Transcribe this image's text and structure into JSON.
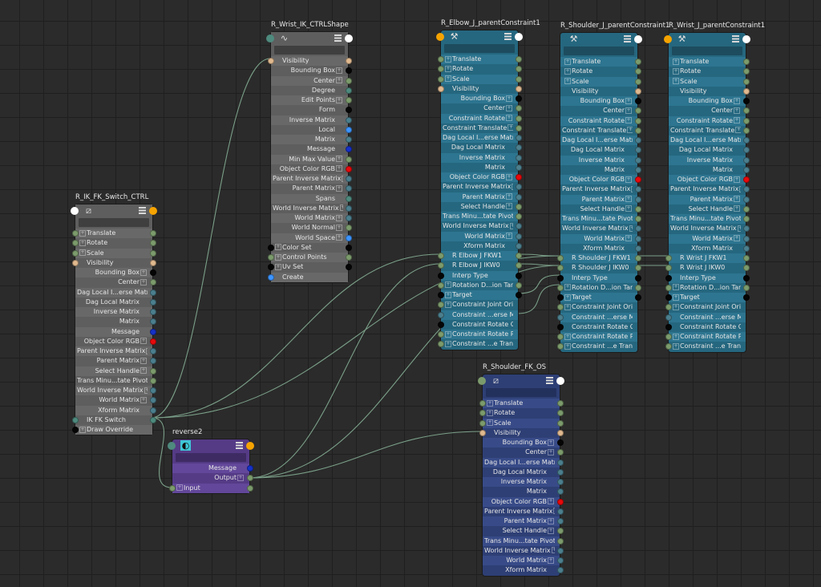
{
  "port_colors": {
    "g": "#7c9b6c",
    "t": "#e0b98f",
    "k": "#050505",
    "b": "#4b7f8e",
    "n": "#1531c8",
    "r": "#e8090b",
    "c": "#3d95ff",
    "d": "#4e8a7e",
    "w": "#ffffff",
    "o": "#f5a300"
  },
  "node_colors": {
    "gray": "#5e5e5e",
    "teal": "#25677f",
    "purple": "#553b86",
    "navy": "#2e3f75",
    "wire": "#7a9f88"
  },
  "nodes": [
    {
      "title": "R_IK_FK_Switch_CTRL",
      "style": "gray",
      "icon": "transform-icon",
      "head_ports": [
        "w",
        "o"
      ],
      "rows": [
        [
          "Translate",
          "l",
          "g",
          "g",
          1
        ],
        [
          "Rotate",
          "l",
          "g",
          "g",
          1
        ],
        [
          "Scale",
          "l",
          "g",
          "g",
          1
        ],
        [
          "Visibility",
          "l",
          "t",
          "t",
          0
        ],
        [
          "Bounding Box",
          "r",
          "",
          "k",
          1
        ],
        [
          "Center",
          "r",
          "",
          "g",
          1
        ],
        [
          "Dag Local I...erse Matrix",
          "r",
          "",
          "b",
          0
        ],
        [
          "Dag Local Matrix",
          "r",
          "",
          "b",
          0
        ],
        [
          "Inverse Matrix",
          "r",
          "",
          "b",
          0
        ],
        [
          "Matrix",
          "r",
          "",
          "b",
          0
        ],
        [
          "Message",
          "r",
          "",
          "n",
          0
        ],
        [
          "Object Color RGB",
          "r",
          "",
          "r",
          1
        ],
        [
          "Parent Inverse Matrix",
          "r",
          "",
          "b",
          1
        ],
        [
          "Parent Matrix",
          "r",
          "",
          "b",
          1
        ],
        [
          "Select Handle",
          "r",
          "",
          "g",
          1
        ],
        [
          "Trans Minu...tate Pivot",
          "r",
          "",
          "g",
          1
        ],
        [
          "World Inverse Matrix",
          "r",
          "",
          "b",
          1
        ],
        [
          "World Matrix",
          "r",
          "",
          "b",
          1
        ],
        [
          "Xform Matrix",
          "r",
          "",
          "b",
          0
        ],
        [
          "IK FK Switch",
          "l",
          "d",
          "d",
          0
        ],
        [
          "Draw Override",
          "l",
          "k",
          "",
          1
        ]
      ]
    },
    {
      "title": "R_Wrist_IK_CTRLShape",
      "style": "gray",
      "icon": "curve-icon",
      "head_ports": [
        "d",
        "w"
      ],
      "rows": [
        [
          "Visibility",
          "l",
          "t",
          "t",
          0
        ],
        [
          "Bounding Box",
          "r",
          "",
          "k",
          1
        ],
        [
          "Center",
          "r",
          "",
          "g",
          1
        ],
        [
          "Degree",
          "r",
          "",
          "d",
          0
        ],
        [
          "Edit Points",
          "r",
          "",
          "g",
          1
        ],
        [
          "Form",
          "r",
          "",
          "k",
          0
        ],
        [
          "Inverse Matrix",
          "r",
          "",
          "b",
          0
        ],
        [
          "Local",
          "r",
          "",
          "c",
          0
        ],
        [
          "Matrix",
          "r",
          "",
          "b",
          0
        ],
        [
          "Message",
          "r",
          "",
          "n",
          0
        ],
        [
          "Min Max Value",
          "r",
          "",
          "g",
          1
        ],
        [
          "Object Color RGB",
          "r",
          "",
          "r",
          1
        ],
        [
          "Parent Inverse Matrix",
          "r",
          "",
          "b",
          1
        ],
        [
          "Parent Matrix",
          "r",
          "",
          "b",
          1
        ],
        [
          "Spans",
          "r",
          "",
          "d",
          0
        ],
        [
          "World Inverse Matrix",
          "r",
          "",
          "b",
          1
        ],
        [
          "World Matrix",
          "r",
          "",
          "b",
          1
        ],
        [
          "World Normal",
          "r",
          "",
          "g",
          1
        ],
        [
          "World Space",
          "r",
          "",
          "c",
          1
        ],
        [
          "Color Set",
          "l",
          "k",
          "k",
          1
        ],
        [
          "Control Points",
          "l",
          "g",
          "g",
          1
        ],
        [
          "Uv Set",
          "l",
          "k",
          "k",
          1
        ],
        [
          "Create",
          "l",
          "c",
          "",
          0
        ]
      ]
    },
    {
      "title": "R_Elbow_J_parentConstraint1",
      "style": "teal",
      "icon": "constraint-icon",
      "head_ports": [
        "o",
        "w"
      ],
      "rows": [
        [
          "Translate",
          "l",
          "g",
          "g",
          1
        ],
        [
          "Rotate",
          "l",
          "g",
          "g",
          1
        ],
        [
          "Scale",
          "l",
          "g",
          "g",
          1
        ],
        [
          "Visibility",
          "l",
          "t",
          "t",
          0
        ],
        [
          "Bounding Box",
          "r",
          "",
          "k",
          1
        ],
        [
          "Center",
          "r",
          "",
          "g",
          1
        ],
        [
          "Constraint Rotate",
          "r",
          "",
          "g",
          1
        ],
        [
          "Constraint Translate",
          "r",
          "",
          "g",
          1
        ],
        [
          "Dag Local I...erse Matrix",
          "r",
          "",
          "b",
          0
        ],
        [
          "Dag Local Matrix",
          "r",
          "",
          "b",
          0
        ],
        [
          "Inverse Matrix",
          "r",
          "",
          "b",
          0
        ],
        [
          "Matrix",
          "r",
          "",
          "b",
          0
        ],
        [
          "Object Color RGB",
          "r",
          "",
          "r",
          1
        ],
        [
          "Parent Inverse Matrix",
          "r",
          "",
          "b",
          1
        ],
        [
          "Parent Matrix",
          "r",
          "",
          "b",
          1
        ],
        [
          "Select Handle",
          "r",
          "",
          "g",
          1
        ],
        [
          "Trans Minu...tate Pivot",
          "r",
          "",
          "g",
          1
        ],
        [
          "World Inverse Matrix",
          "r",
          "",
          "b",
          1
        ],
        [
          "World Matrix",
          "r",
          "",
          "b",
          1
        ],
        [
          "Xform Matrix",
          "r",
          "",
          "b",
          0
        ],
        [
          "R Elbow J FKW1",
          "l",
          "g",
          "g",
          0
        ],
        [
          "R Elbow J IKW0",
          "l",
          "g",
          "g",
          0
        ],
        [
          "Interp Type",
          "l",
          "k",
          "k",
          0
        ],
        [
          "Rotation D...ion Target",
          "l",
          "g",
          "g",
          1
        ],
        [
          "Target",
          "l",
          "k",
          "k",
          1
        ],
        [
          "Constraint Joint Orient",
          "l",
          "g",
          "",
          1
        ],
        [
          "Constraint ...erse Matrix",
          "l",
          "b",
          "",
          0
        ],
        [
          "Constraint Rotate Order",
          "l",
          "k",
          "",
          0
        ],
        [
          "Constraint Rotate Pivot",
          "l",
          "g",
          "",
          1
        ],
        [
          "Constraint ...e Translate",
          "l",
          "g",
          "",
          1
        ]
      ]
    },
    {
      "title": "R_Shoulder_J_parentConstraint1",
      "style": "teal",
      "icon": "constraint-icon",
      "head_ports": [
        "",
        "w"
      ],
      "rows": [
        [
          "Translate",
          "l",
          "",
          "g",
          1
        ],
        [
          "Rotate",
          "l",
          "",
          "g",
          1
        ],
        [
          "Scale",
          "l",
          "",
          "g",
          1
        ],
        [
          "Visibility",
          "l",
          "",
          "t",
          0
        ],
        [
          "Bounding Box",
          "r",
          "",
          "k",
          1
        ],
        [
          "Center",
          "r",
          "",
          "g",
          1
        ],
        [
          "Constraint Rotate",
          "r",
          "",
          "g",
          1
        ],
        [
          "Constraint Translate",
          "r",
          "",
          "g",
          1
        ],
        [
          "Dag Local I...erse Matrix",
          "r",
          "",
          "b",
          0
        ],
        [
          "Dag Local Matrix",
          "r",
          "",
          "b",
          0
        ],
        [
          "Inverse Matrix",
          "r",
          "",
          "b",
          0
        ],
        [
          "Matrix",
          "r",
          "",
          "b",
          0
        ],
        [
          "Object Color RGB",
          "r",
          "",
          "r",
          1
        ],
        [
          "Parent Inverse Matrix",
          "r",
          "",
          "b",
          1
        ],
        [
          "Parent Matrix",
          "r",
          "",
          "b",
          1
        ],
        [
          "Select Handle",
          "r",
          "",
          "g",
          1
        ],
        [
          "Trans Minu...tate Pivot",
          "r",
          "",
          "g",
          1
        ],
        [
          "World Inverse Matrix",
          "r",
          "",
          "b",
          1
        ],
        [
          "World Matrix",
          "r",
          "",
          "b",
          1
        ],
        [
          "Xform Matrix",
          "r",
          "",
          "b",
          0
        ],
        [
          "R Shoulder J FKW1",
          "l",
          "g",
          "g",
          0
        ],
        [
          "R Shoulder J IKW0",
          "l",
          "g",
          "g",
          0
        ],
        [
          "Interp Type",
          "l",
          "k",
          "k",
          0
        ],
        [
          "Rotation D...ion Target",
          "l",
          "g",
          "g",
          1
        ],
        [
          "Target",
          "l",
          "k",
          "k",
          1
        ],
        [
          "Constraint Joint Orient",
          "l",
          "g",
          "",
          1
        ],
        [
          "Constraint ...erse Matrix",
          "l",
          "b",
          "",
          0
        ],
        [
          "Constraint Rotate Order",
          "l",
          "k",
          "",
          0
        ],
        [
          "Constraint Rotate Pivot",
          "l",
          "g",
          "",
          1
        ],
        [
          "Constraint ...e Translate",
          "l",
          "g",
          "",
          1
        ]
      ]
    },
    {
      "title": "R_Wrist_J_parentConstraint1",
      "style": "teal",
      "icon": "constraint-icon",
      "head_ports": [
        "o",
        "w"
      ],
      "rows": [
        [
          "Translate",
          "l",
          "",
          "g",
          1
        ],
        [
          "Rotate",
          "l",
          "",
          "g",
          1
        ],
        [
          "Scale",
          "l",
          "",
          "g",
          1
        ],
        [
          "Visibility",
          "l",
          "",
          "t",
          0
        ],
        [
          "Bounding Box",
          "r",
          "",
          "k",
          1
        ],
        [
          "Center",
          "r",
          "",
          "g",
          1
        ],
        [
          "Constraint Rotate",
          "r",
          "",
          "g",
          1
        ],
        [
          "Constraint Translate",
          "r",
          "",
          "g",
          1
        ],
        [
          "Dag Local I...erse Matrix",
          "r",
          "",
          "b",
          0
        ],
        [
          "Dag Local Matrix",
          "r",
          "",
          "b",
          0
        ],
        [
          "Inverse Matrix",
          "r",
          "",
          "b",
          0
        ],
        [
          "Matrix",
          "r",
          "",
          "b",
          0
        ],
        [
          "Object Color RGB",
          "r",
          "",
          "r",
          1
        ],
        [
          "Parent Inverse Matrix",
          "r",
          "",
          "b",
          1
        ],
        [
          "Parent Matrix",
          "r",
          "",
          "b",
          1
        ],
        [
          "Select Handle",
          "r",
          "",
          "g",
          1
        ],
        [
          "Trans Minu...tate Pivot",
          "r",
          "",
          "g",
          1
        ],
        [
          "World Inverse Matrix",
          "r",
          "",
          "b",
          1
        ],
        [
          "World Matrix",
          "r",
          "",
          "b",
          1
        ],
        [
          "Xform Matrix",
          "r",
          "",
          "b",
          0
        ],
        [
          "R Wrist J FKW1",
          "l",
          "g",
          "g",
          0
        ],
        [
          "R Wrist J IKW0",
          "l",
          "g",
          "g",
          0
        ],
        [
          "Interp Type",
          "l",
          "k",
          "k",
          0
        ],
        [
          "Rotation D...ion Target",
          "l",
          "g",
          "g",
          1
        ],
        [
          "Target",
          "l",
          "k",
          "k",
          1
        ],
        [
          "Constraint Joint Orient",
          "l",
          "g",
          "",
          1
        ],
        [
          "Constraint ...erse Matrix",
          "l",
          "b",
          "",
          0
        ],
        [
          "Constraint Rotate Order",
          "l",
          "k",
          "",
          0
        ],
        [
          "Constraint Rotate Pivot",
          "l",
          "g",
          "",
          1
        ],
        [
          "Constraint ...e Translate",
          "l",
          "g",
          "",
          1
        ]
      ]
    },
    {
      "title": "reverse2",
      "style": "purple",
      "icon": "reverse-icon",
      "head_ports": [
        "d",
        "o"
      ],
      "rows": [
        [
          "Message",
          "r",
          "",
          "n",
          0
        ],
        [
          "Output",
          "r",
          "",
          "g",
          1
        ],
        [
          "Input",
          "l",
          "g",
          "g",
          1
        ]
      ]
    },
    {
      "title": "R_Shoulder_FK_OS",
      "style": "navy",
      "icon": "transform-icon",
      "head_ports": [
        "g",
        "w"
      ],
      "rows": [
        [
          "Translate",
          "l",
          "g",
          "g",
          1
        ],
        [
          "Rotate",
          "l",
          "g",
          "g",
          1
        ],
        [
          "Scale",
          "l",
          "g",
          "g",
          1
        ],
        [
          "Visibility",
          "l",
          "t",
          "t",
          0
        ],
        [
          "Bounding Box",
          "r",
          "",
          "k",
          1
        ],
        [
          "Center",
          "r",
          "",
          "g",
          1
        ],
        [
          "Dag Local I...erse Matrix",
          "r",
          "",
          "b",
          0
        ],
        [
          "Dag Local Matrix",
          "r",
          "",
          "b",
          0
        ],
        [
          "Inverse Matrix",
          "r",
          "",
          "b",
          0
        ],
        [
          "Matrix",
          "r",
          "",
          "b",
          0
        ],
        [
          "Object Color RGB",
          "r",
          "",
          "r",
          1
        ],
        [
          "Parent Inverse Matrix",
          "r",
          "",
          "b",
          1
        ],
        [
          "Parent Matrix",
          "r",
          "",
          "b",
          1
        ],
        [
          "Select Handle",
          "r",
          "",
          "g",
          1
        ],
        [
          "Trans Minu...tate Pivot",
          "r",
          "",
          "g",
          1
        ],
        [
          "World Inverse Matrix",
          "r",
          "",
          "b",
          1
        ],
        [
          "World Matrix",
          "r",
          "",
          "b",
          1
        ],
        [
          "Xform Matrix",
          "r",
          "",
          "b",
          0
        ]
      ]
    }
  ]
}
